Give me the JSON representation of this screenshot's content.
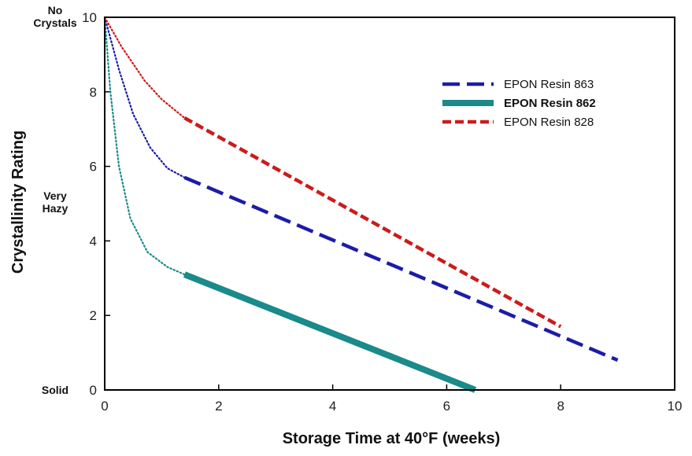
{
  "chart_data": {
    "type": "line",
    "xlabel": "Storage Time at 40°F (weeks)",
    "ylabel": "Crystallinity Rating",
    "xlim": [
      0,
      10
    ],
    "ylim": [
      0,
      10
    ],
    "xticks": [
      "0",
      "2",
      "4",
      "6",
      "8",
      "10"
    ],
    "yticks": [
      "0",
      "2",
      "4",
      "6",
      "8",
      "10"
    ],
    "y_category_labels": [
      {
        "y": 10,
        "lines": [
          "No",
          "Crystals"
        ]
      },
      {
        "y": 5,
        "lines": [
          "Very",
          "Hazy"
        ]
      },
      {
        "y": 0,
        "lines": [
          "Solid"
        ]
      }
    ],
    "grid": false,
    "legend_position": "top-right",
    "series": [
      {
        "name": "EPON Resin 863",
        "color": "#1c1ca8",
        "style": "long-dash",
        "extrapolated": [
          [
            0,
            10
          ],
          [
            0.25,
            8.6
          ],
          [
            0.5,
            7.4
          ],
          [
            0.8,
            6.5
          ],
          [
            1.1,
            5.95
          ],
          [
            1.4,
            5.7
          ]
        ],
        "measured": [
          [
            1.4,
            5.7
          ],
          [
            9.0,
            0.8
          ]
        ]
      },
      {
        "name": "EPON Resin 862",
        "color": "#1a8a8a",
        "style": "thick-solid",
        "extrapolated": [
          [
            0,
            10
          ],
          [
            0.1,
            8.0
          ],
          [
            0.25,
            6.0
          ],
          [
            0.45,
            4.6
          ],
          [
            0.75,
            3.7
          ],
          [
            1.1,
            3.3
          ],
          [
            1.4,
            3.1
          ]
        ],
        "measured": [
          [
            1.4,
            3.1
          ],
          [
            6.5,
            0.0
          ]
        ]
      },
      {
        "name": "EPON Resin 828",
        "color": "#cc1b1b",
        "style": "short-dash",
        "extrapolated": [
          [
            0,
            10
          ],
          [
            0.3,
            9.2
          ],
          [
            0.7,
            8.3
          ],
          [
            1.0,
            7.8
          ],
          [
            1.4,
            7.3
          ]
        ],
        "measured": [
          [
            1.4,
            7.3
          ],
          [
            8.0,
            1.7
          ]
        ]
      }
    ]
  }
}
